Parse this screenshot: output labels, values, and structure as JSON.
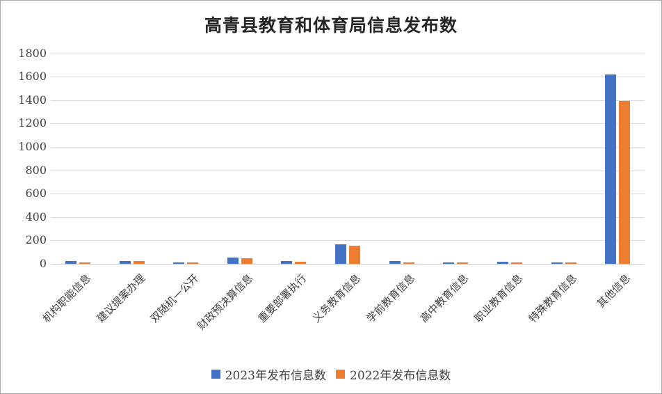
{
  "chart_data": {
    "type": "bar",
    "title": "高青县教育和体育局信息发布数",
    "categories": [
      "机构职能信息",
      "建议提案办理",
      "双随机一公开",
      "财政预决算信息",
      "重要部署执行",
      "义务教育信息",
      "学前教育信息",
      "高中教育信息",
      "职业教育信息",
      "特殊教育信息",
      "其他信息"
    ],
    "series": [
      {
        "name": "2023年发布信息数",
        "color": "#4472C4",
        "values": [
          22,
          22,
          14,
          52,
          22,
          165,
          22,
          12,
          16,
          12,
          1620
        ]
      },
      {
        "name": "2022年发布信息数",
        "color": "#ED7D31",
        "values": [
          12,
          26,
          10,
          48,
          20,
          155,
          14,
          13,
          12,
          12,
          1390
        ]
      }
    ],
    "xlabel": "",
    "ylabel": "",
    "ylim": [
      0,
      1800
    ],
    "ytick_step": 200,
    "yticks": [
      0,
      200,
      400,
      600,
      800,
      1000,
      1200,
      1400,
      1600,
      1800
    ],
    "grid": "horizontal",
    "legend_position": "bottom",
    "colors": {
      "gridline": "#d9d9d9",
      "axis_text": "#404040",
      "title_text": "#262626",
      "canvas_border": "#ababab",
      "background": "#ffffff"
    }
  }
}
